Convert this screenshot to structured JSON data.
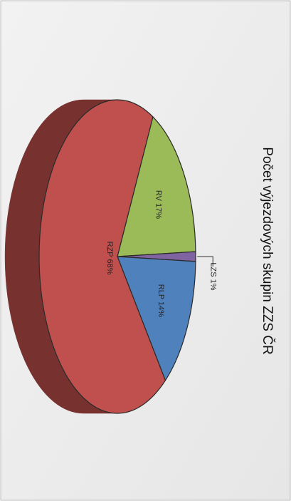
{
  "chart_data": {
    "type": "pie",
    "title": "Počet výjezdových skupin ZZS ČR",
    "categories": [
      "RV",
      "LZS",
      "RLP",
      "RZP"
    ],
    "values": [
      17,
      1,
      14,
      68
    ],
    "value_labels": [
      "RV 17%",
      "LZS 1%",
      "RLP 14%",
      "RZP 68%"
    ],
    "colors": [
      "#9bbb59",
      "#8064a2",
      "#4f81bd",
      "#c0504d"
    ]
  }
}
